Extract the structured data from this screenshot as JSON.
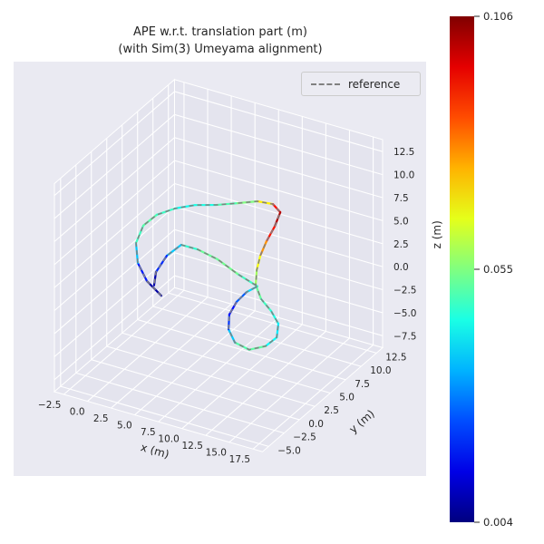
{
  "colors": {
    "axes_bg": "#eaeaf2",
    "pane": "#e4e4ee",
    "grid": "#ffffff",
    "text": "#262626",
    "reference": "#808080"
  },
  "chart_data": {
    "type": "line",
    "projection": "3d",
    "view": {
      "elev": 30,
      "azim": -60
    },
    "title_line1": "APE w.r.t. translation part (m)",
    "title_line2": "(with Sim(3) Umeyama alignment)",
    "legend": [
      "reference"
    ],
    "xlabel": "x (m)",
    "ylabel": "y (m)",
    "zlabel": "z (m)",
    "xticks": [
      -2.5,
      0.0,
      2.5,
      5.0,
      7.5,
      10.0,
      12.5,
      15.0,
      17.5
    ],
    "yticks": [
      -5.0,
      -2.5,
      0.0,
      2.5,
      5.0,
      7.5,
      10.0,
      12.5
    ],
    "zticks": [
      -7.5,
      -5.0,
      -2.5,
      0.0,
      2.5,
      5.0,
      7.5,
      10.0,
      12.5
    ],
    "xlim": [
      -3.5,
      18.5
    ],
    "ylim": [
      -6.0,
      13.5
    ],
    "zlim": [
      -8.8,
      13.8
    ],
    "colorbar": {
      "colormap": "jet",
      "vmin": 0.004,
      "vmax": 0.106,
      "label_ticks": [
        "0.106",
        "0.055",
        "0.004"
      ]
    },
    "trajectory": {
      "x": [
        3.8,
        1.52,
        -0.49,
        -2.07,
        -2.71,
        -2.25,
        -0.99,
        0.46,
        2.31,
        4.05,
        5.65,
        7.13,
        8.27,
        8.75,
        9.08,
        9.52,
        10.18,
        11.06,
        12.41,
        14.1,
        15.66,
        16.59,
        16.32,
        15.35,
        13.55,
        12.03,
        10.93,
        10.54,
        10.62,
        11.15,
        8.6,
        5.7,
        3.21,
        1.49,
        1.16,
        1.6,
        2.48
      ],
      "y": [
        0.14,
        1.31,
        2.91,
        5.06,
        7.22,
        8.68,
        9.74,
        10.73,
        11.3,
        12.14,
        12.92,
        13.15,
        12.6,
        10.95,
        9.11,
        7.44,
        5.84,
        4.32,
        3.13,
        2.15,
        0.94,
        -0.75,
        -2.14,
        -3.31,
        -2.88,
        -1.57,
        0.24,
        2.01,
        3.52,
        4.47,
        5.13,
        6.36,
        6.95,
        6.93,
        5.1,
        2.66,
        1.0
      ],
      "z": [
        0.24,
        0.47,
        0.92,
        1.37,
        1.82,
        2.27,
        2.73,
        2.95,
        3.18,
        3.4,
        3.63,
        3.63,
        3.4,
        2.95,
        2.5,
        2.05,
        1.6,
        1.14,
        0.69,
        0.47,
        0.24,
        0.01,
        -0.21,
        -0.21,
        -0.21,
        0.01,
        0.24,
        0.47,
        0.69,
        0.92,
        1.14,
        1.14,
        1.14,
        1.14,
        0.92,
        0.69,
        0.47
      ],
      "ape": [
        0.005,
        0.01,
        0.028,
        0.045,
        0.052,
        0.05,
        0.046,
        0.042,
        0.048,
        0.052,
        0.058,
        0.08,
        0.104,
        0.098,
        0.085,
        0.072,
        0.062,
        0.055,
        0.05,
        0.047,
        0.043,
        0.038,
        0.048,
        0.055,
        0.046,
        0.028,
        0.016,
        0.02,
        0.032,
        0.045,
        0.052,
        0.055,
        0.05,
        0.044,
        0.03,
        0.012,
        0.005
      ]
    }
  }
}
